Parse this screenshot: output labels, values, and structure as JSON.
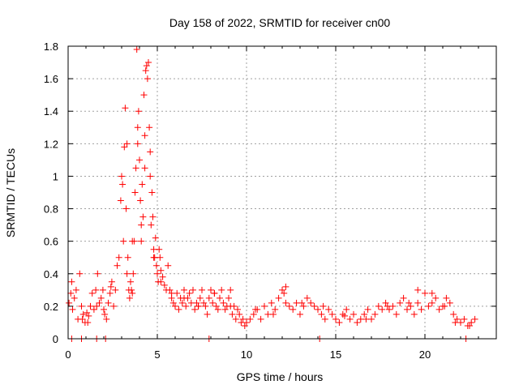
{
  "chart_data": {
    "type": "scatter",
    "title": "Day 158 of 2022, SRMTID for receiver cn00",
    "xlabel": "GPS time / hours",
    "ylabel": "SRMTID / TECUs",
    "xlim": [
      0,
      24.0
    ],
    "ylim": [
      0,
      1.8
    ],
    "x_ticks": [
      0,
      5,
      10,
      15,
      20
    ],
    "x_tick_labels": [
      "0",
      "5",
      "10",
      "15",
      "20"
    ],
    "y_ticks": [
      0,
      0.2,
      0.4,
      0.6,
      0.8,
      1.0,
      1.2,
      1.4,
      1.6,
      1.8
    ],
    "y_tick_labels": [
      "0",
      "0.2",
      "0.4",
      "0.6",
      "0.8",
      "1",
      "1.2",
      "1.4",
      "1.6",
      "1.8"
    ],
    "grid": true,
    "marker": "+",
    "series": [
      {
        "name": "SRMTID",
        "color": "#ff0000",
        "x": [
          0.05,
          0.15,
          0.25,
          0.35,
          0.45,
          0.55,
          0.65,
          0.75,
          0.85,
          0.95,
          1.05,
          1.15,
          1.25,
          1.35,
          1.45,
          1.55,
          1.65,
          1.75,
          1.85,
          1.95,
          2.05,
          2.15,
          2.25,
          2.35,
          2.45,
          2.55,
          2.65,
          2.75,
          2.85,
          2.95,
          3.0,
          3.05,
          3.1,
          3.15,
          3.2,
          3.25,
          3.3,
          3.35,
          3.4,
          3.45,
          3.5,
          3.55,
          3.6,
          3.65,
          3.7,
          3.75,
          3.8,
          3.85,
          3.9,
          3.95,
          4.0,
          4.05,
          4.1,
          4.15,
          4.2,
          4.25,
          4.3,
          4.35,
          4.4,
          4.45,
          4.5,
          4.55,
          4.6,
          4.65,
          4.7,
          4.75,
          4.8,
          4.85,
          4.9,
          4.95,
          5.0,
          5.05,
          5.1,
          5.15,
          5.2,
          5.3,
          5.4,
          5.5,
          5.6,
          5.7,
          5.8,
          5.9,
          6.0,
          6.1,
          6.2,
          6.3,
          6.4,
          6.5,
          6.6,
          6.7,
          6.8,
          6.9,
          7.0,
          7.1,
          7.2,
          7.3,
          7.4,
          7.5,
          7.6,
          7.7,
          7.8,
          7.9,
          8.0,
          8.1,
          8.2,
          8.3,
          8.4,
          8.5,
          8.6,
          8.7,
          8.8,
          8.9,
          9.0,
          9.1,
          9.2,
          9.3,
          9.4,
          9.5,
          9.6,
          9.7,
          9.8,
          9.9,
          10.0,
          10.2,
          10.4,
          10.6,
          10.8,
          11.0,
          11.2,
          11.4,
          11.6,
          11.8,
          12.0,
          12.1,
          12.2,
          12.4,
          12.6,
          12.8,
          13.0,
          13.2,
          13.4,
          13.6,
          13.8,
          14.0,
          14.2,
          14.4,
          14.6,
          14.8,
          15.0,
          15.2,
          15.4,
          15.6,
          15.8,
          16.0,
          16.2,
          16.4,
          16.6,
          16.8,
          17.0,
          17.2,
          17.4,
          17.6,
          17.8,
          18.0,
          18.2,
          18.4,
          18.6,
          18.8,
          19.0,
          19.2,
          19.4,
          19.6,
          19.8,
          20.0,
          20.2,
          20.4,
          20.6,
          20.8,
          21.0,
          21.2,
          21.4,
          21.6,
          21.8,
          22.0,
          22.2,
          22.4,
          22.6,
          22.8,
          0.2,
          0.8,
          1.1,
          1.6,
          2.0,
          2.4,
          3.3,
          3.6,
          3.9,
          4.1,
          4.3,
          4.6,
          4.8,
          5.2,
          5.8,
          6.5,
          7.3,
          8.2,
          9.1,
          10.5,
          11.5,
          12.2,
          13.1,
          14.3,
          15.5,
          16.7,
          17.9,
          19.1,
          19.6,
          20.4,
          21.1,
          21.7,
          22.5
        ],
        "y": [
          0.22,
          0.28,
          0.18,
          0.25,
          0.3,
          0.12,
          0.4,
          0.2,
          0.15,
          0.1,
          0.16,
          0.14,
          0.2,
          0.28,
          0.18,
          0.3,
          0.4,
          0.22,
          0.25,
          0.3,
          0.15,
          0.12,
          0.22,
          0.28,
          0.35,
          0.2,
          0.3,
          0.45,
          0.5,
          0.85,
          1.0,
          0.95,
          0.6,
          1.18,
          1.42,
          0.8,
          1.2,
          0.5,
          0.3,
          0.25,
          0.35,
          0.3,
          0.28,
          0.4,
          0.6,
          0.9,
          1.05,
          1.78,
          1.3,
          1.4,
          1.1,
          0.85,
          0.6,
          0.95,
          0.75,
          1.5,
          1.25,
          1.65,
          1.68,
          1.6,
          1.7,
          1.3,
          1.0,
          0.7,
          0.9,
          0.75,
          0.55,
          0.5,
          0.62,
          0.45,
          0.4,
          0.35,
          0.55,
          0.5,
          0.42,
          0.38,
          0.33,
          0.3,
          0.45,
          0.3,
          0.25,
          0.22,
          0.2,
          0.28,
          0.18,
          0.25,
          0.22,
          0.3,
          0.2,
          0.25,
          0.28,
          0.22,
          0.3,
          0.18,
          0.22,
          0.2,
          0.25,
          0.3,
          0.22,
          0.2,
          0.15,
          0.25,
          0.3,
          0.22,
          0.28,
          0.2,
          0.18,
          0.25,
          0.3,
          0.22,
          0.18,
          0.2,
          0.25,
          0.3,
          0.15,
          0.2,
          0.12,
          0.18,
          0.15,
          0.1,
          0.12,
          0.08,
          0.1,
          0.12,
          0.15,
          0.18,
          0.12,
          0.2,
          0.15,
          0.22,
          0.18,
          0.25,
          0.3,
          0.28,
          0.22,
          0.2,
          0.18,
          0.22,
          0.15,
          0.2,
          0.25,
          0.22,
          0.2,
          0.18,
          0.15,
          0.12,
          0.18,
          0.15,
          0.12,
          0.1,
          0.15,
          0.18,
          0.12,
          0.15,
          0.1,
          0.12,
          0.15,
          0.18,
          0.12,
          0.15,
          0.2,
          0.18,
          0.22,
          0.18,
          0.2,
          0.15,
          0.22,
          0.25,
          0.18,
          0.2,
          0.15,
          0.22,
          0.18,
          0.28,
          0.2,
          0.22,
          0.25,
          0.18,
          0.2,
          0.25,
          0.22,
          0.15,
          0.12,
          0.1,
          0.12,
          0.08,
          0.1,
          0.12,
          0.35,
          0.12,
          0.1,
          0.2,
          0.18,
          0.32,
          0.4,
          0.6,
          1.2,
          0.7,
          1.05,
          1.15,
          0.5,
          0.35,
          0.28,
          0.25,
          0.2,
          0.28,
          0.2,
          0.18,
          0.15,
          0.32,
          0.22,
          0.2,
          0.14,
          0.12,
          0.2,
          0.22,
          0.3,
          0.28,
          0.2,
          0.1,
          0.08
        ],
        "zero_markers_x": [
          0.2,
          0.75,
          1.6,
          2.1,
          7.9,
          14.1,
          22.3
        ]
      }
    ]
  }
}
